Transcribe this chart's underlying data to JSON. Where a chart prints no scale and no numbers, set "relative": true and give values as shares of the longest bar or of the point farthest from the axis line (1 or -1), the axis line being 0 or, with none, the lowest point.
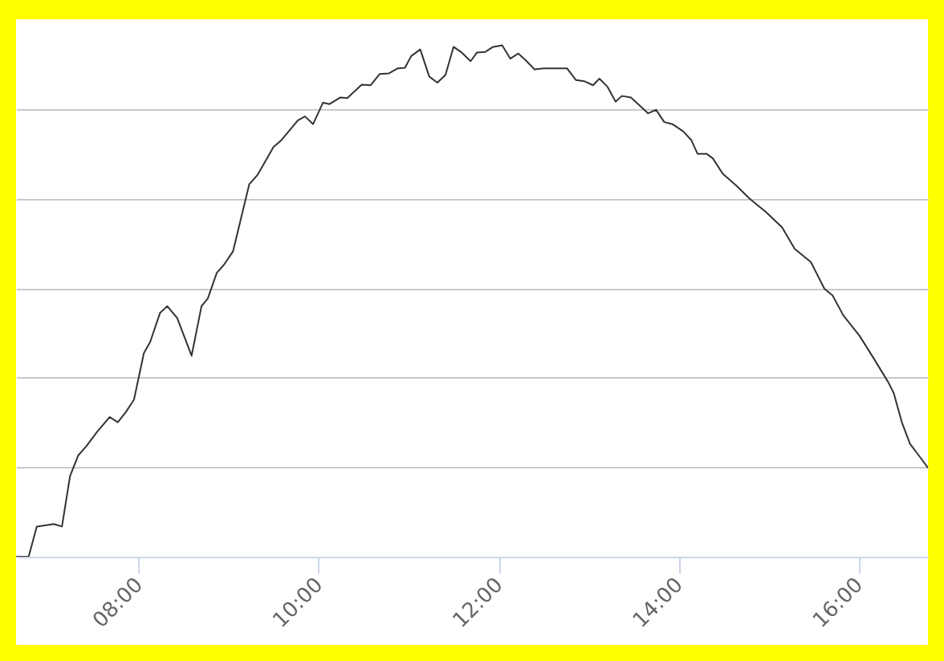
{
  "chart_data": {
    "type": "line",
    "relative": true,
    "grid": "y",
    "x": [
      6.64,
      6.78,
      6.87,
      7.06,
      7.15,
      7.24,
      7.33,
      7.42,
      7.54,
      7.68,
      7.77,
      7.86,
      7.95,
      8.06,
      8.13,
      8.24,
      8.32,
      8.43,
      8.59,
      8.7,
      8.77,
      8.87,
      8.95,
      9.05,
      9.23,
      9.32,
      9.5,
      9.59,
      9.77,
      9.85,
      9.94,
      10.05,
      10.12,
      10.24,
      10.32,
      10.48,
      10.58,
      10.68,
      10.78,
      10.88,
      10.96,
      11.03,
      11.13,
      11.23,
      11.32,
      11.41,
      11.5,
      11.59,
      11.69,
      11.76,
      11.85,
      11.94,
      12.04,
      12.13,
      12.22,
      12.3,
      12.4,
      12.5,
      12.62,
      12.76,
      12.86,
      12.95,
      13.05,
      13.12,
      13.21,
      13.3,
      13.37,
      13.47,
      13.57,
      13.66,
      13.75,
      13.84,
      13.93,
      14.05,
      14.14,
      14.21,
      14.31,
      14.38,
      14.49,
      14.64,
      14.79,
      14.97,
      15.15,
      15.29,
      15.47,
      15.62,
      15.71,
      15.83,
      16.01,
      16.16,
      16.33,
      16.39,
      16.48,
      16.57,
      16.66,
      16.77
    ],
    "series": [
      {
        "color": "#333333",
        "values": [
          0.0,
          0.0,
          0.059,
          0.064,
          0.059,
          0.158,
          0.198,
          0.216,
          0.244,
          0.273,
          0.263,
          0.283,
          0.307,
          0.398,
          0.42,
          0.477,
          0.49,
          0.467,
          0.393,
          0.49,
          0.505,
          0.555,
          0.571,
          0.597,
          0.728,
          0.746,
          0.801,
          0.815,
          0.853,
          0.861,
          0.846,
          0.888,
          0.885,
          0.898,
          0.897,
          0.923,
          0.922,
          0.944,
          0.945,
          0.955,
          0.956,
          0.979,
          0.992,
          0.939,
          0.927,
          0.942,
          0.997,
          0.986,
          0.969,
          0.986,
          0.987,
          0.997,
          1.0,
          0.974,
          0.984,
          0.971,
          0.953,
          0.955,
          0.955,
          0.955,
          0.932,
          0.93,
          0.922,
          0.935,
          0.919,
          0.89,
          0.901,
          0.898,
          0.882,
          0.867,
          0.874,
          0.85,
          0.846,
          0.832,
          0.815,
          0.788,
          0.788,
          0.779,
          0.749,
          0.726,
          0.7,
          0.674,
          0.644,
          0.602,
          0.576,
          0.524,
          0.511,
          0.472,
          0.432,
          0.39,
          0.341,
          0.32,
          0.263,
          0.221,
          0.2,
          0.174
        ]
      }
    ],
    "xlim": [
      6.64,
      16.77
    ],
    "xticks": [
      {
        "value": 8,
        "label": "08:00"
      },
      {
        "value": 10,
        "label": "10:00"
      },
      {
        "value": 12,
        "label": "12:00"
      },
      {
        "value": 14,
        "label": "14:00"
      },
      {
        "value": 16,
        "label": "16:00"
      }
    ]
  }
}
